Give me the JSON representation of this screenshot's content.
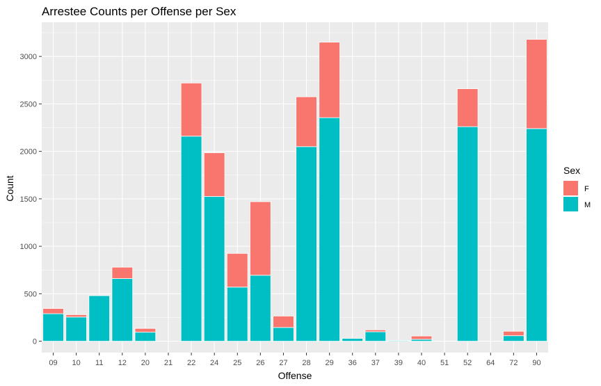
{
  "chart_data": {
    "type": "bar",
    "stacked": true,
    "title": "Arrestee Counts per Offense per Sex",
    "xlabel": "Offense",
    "ylabel": "Count",
    "categories": [
      "09",
      "10",
      "11",
      "12",
      "20",
      "21",
      "22",
      "24",
      "25",
      "26",
      "27",
      "28",
      "29",
      "36",
      "37",
      "39",
      "40",
      "51",
      "52",
      "64",
      "72",
      "90"
    ],
    "series": [
      {
        "name": "M",
        "color": "#00BFC4",
        "values": [
          290,
          255,
          480,
          660,
          95,
          0,
          2160,
          1525,
          570,
          695,
          145,
          2050,
          2355,
          30,
          100,
          8,
          20,
          0,
          2260,
          0,
          58,
          2240
        ]
      },
      {
        "name": "F",
        "color": "#F8766D",
        "values": [
          55,
          25,
          0,
          120,
          40,
          0,
          560,
          460,
          355,
          775,
          120,
          525,
          795,
          0,
          20,
          0,
          35,
          0,
          400,
          0,
          47,
          940
        ]
      }
    ],
    "ylim": [
      -120,
      3360
    ],
    "yticks": [
      0,
      500,
      1000,
      1500,
      2000,
      2500,
      3000
    ],
    "grid": true,
    "legend": {
      "title": "Sex",
      "position": "right",
      "entries": [
        "F",
        "M"
      ]
    },
    "panel_background": "#EBEBEB"
  }
}
